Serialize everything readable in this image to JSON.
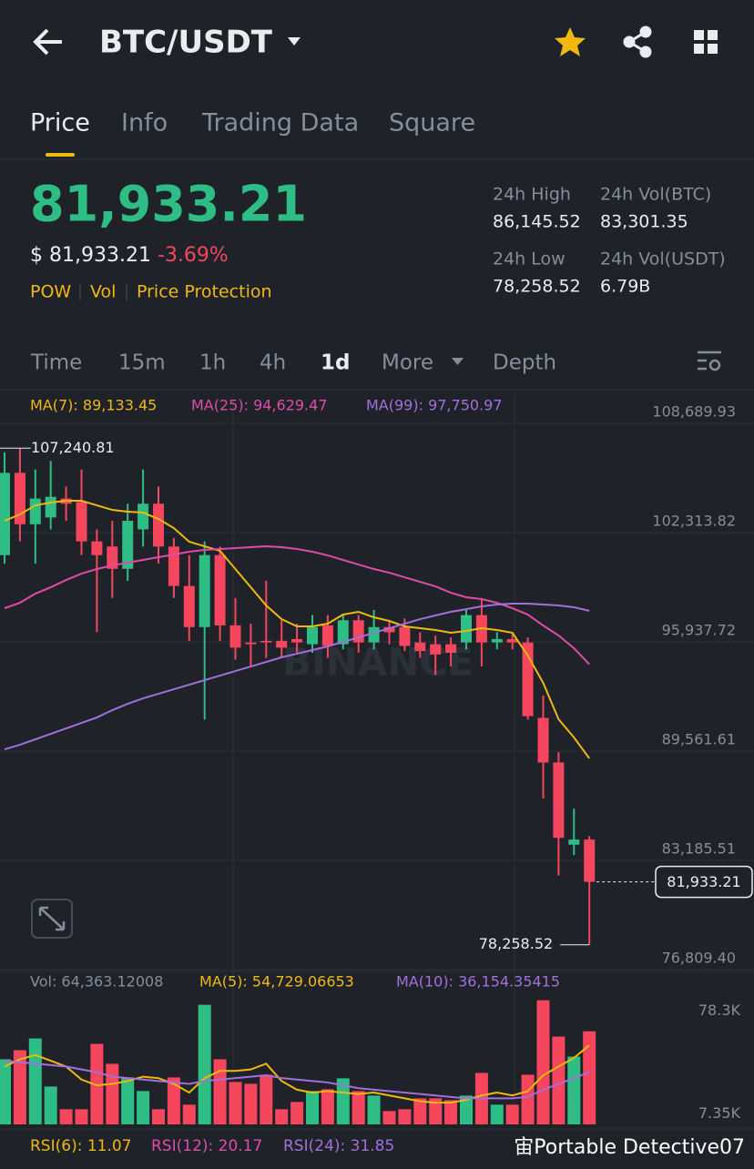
{
  "header": {
    "pair": "BTC/USDT"
  },
  "tabs": [
    "Price",
    "Info",
    "Trading Data",
    "Square"
  ],
  "ticker": {
    "price": "81,933.21",
    "usd_price": "$ 81,933.21",
    "change": "-3.69%",
    "tags": [
      "POW",
      "Vol",
      "Price Protection"
    ],
    "stats": [
      {
        "label": "24h High",
        "value": "86,145.52"
      },
      {
        "label": "24h Vol(BTC)",
        "value": "83,301.35"
      },
      {
        "label": "24h Low",
        "value": "78,258.52"
      },
      {
        "label": "24h Vol(USDT)",
        "value": "6.79B"
      }
    ]
  },
  "intervals": [
    "Time",
    "15m",
    "1h",
    "4h",
    "1d",
    "More",
    "Depth"
  ],
  "watermark": "BINANCE",
  "chart_data": [
    {
      "type": "candlestick",
      "up_color": "#2ebd85",
      "down_color": "#f6465d",
      "open": [
        101000,
        105800,
        102800,
        103200,
        104300,
        104100,
        101800,
        101500,
        100200,
        102500,
        104000,
        101500,
        99200,
        96800,
        101000,
        96900,
        95900,
        96000,
        96000,
        96100,
        95800,
        96900,
        95800,
        97200,
        95900,
        96800,
        96800,
        95900,
        95800,
        95800,
        95900,
        97500,
        95900,
        96100,
        95900,
        91500,
        88900,
        84100,
        84400
      ],
      "high": [
        107000,
        107240.81,
        106000,
        106500,
        105000,
        106000,
        102500,
        103000,
        104000,
        106000,
        105000,
        102000,
        101000,
        101800,
        101500,
        98500,
        97000,
        99500,
        97200,
        97000,
        97500,
        97500,
        97500,
        97500,
        97800,
        97200,
        97300,
        96500,
        96300,
        96200,
        97800,
        98500,
        96500,
        96400,
        96200,
        92800,
        89500,
        86200,
        84600
      ],
      "low": [
        100500,
        101800,
        100500,
        102500,
        103000,
        101000,
        96500,
        98500,
        99500,
        101500,
        100500,
        98500,
        96000,
        91400,
        96000,
        94900,
        94500,
        95000,
        95000,
        95200,
        95300,
        95000,
        95500,
        95300,
        95500,
        95800,
        95400,
        95000,
        94000,
        94500,
        95500,
        94500,
        95500,
        95500,
        91400,
        86800,
        82300,
        83500,
        78258.52
      ],
      "close": [
        105800,
        102800,
        104300,
        104400,
        104000,
        101800,
        101000,
        100200,
        103000,
        104000,
        101500,
        99200,
        96800,
        101000,
        96900,
        95600,
        95800,
        95900,
        95600,
        95900,
        96800,
        95700,
        97200,
        95900,
        96800,
        96500,
        95700,
        95400,
        95200,
        95300,
        97500,
        95900,
        96100,
        95900,
        91600,
        88900,
        84500,
        84400,
        81933.21
      ],
      "series": [
        {
          "label": "MA(7): 89,133.45",
          "color": "#f0b90b",
          "values": [
            103003,
            103375,
            103906,
            104066,
            104172,
            104172,
            103906,
            103640,
            103534,
            103481,
            103109,
            102578,
            101781,
            101515,
            101249,
            100187,
            99124,
            98062,
            97265,
            96840,
            96840,
            97000,
            97531,
            97690,
            97371,
            97159,
            96840,
            96734,
            96627,
            96468,
            96574,
            96734,
            96627,
            96468,
            95140,
            93546,
            91420,
            90358,
            89133.45
          ]
        },
        {
          "label": "MA(25): 94,629.47",
          "color": "#e04bab",
          "values": [
            97902,
            98221,
            98752,
            99124,
            99549,
            99921,
            100187,
            100399,
            100558,
            100718,
            100877,
            101036,
            101196,
            101302,
            101355,
            101408,
            101462,
            101515,
            101462,
            101355,
            101196,
            100983,
            100718,
            100452,
            100187,
            99974,
            99709,
            99443,
            99177,
            98805,
            98539,
            98433,
            98221,
            97902,
            97531,
            96893,
            96309,
            95565,
            94629.47
          ]
        },
        {
          "label": "MA(99): 97,750.97",
          "color": "#a26fdc",
          "values": [
            89666,
            89932,
            90251,
            90570,
            90888,
            91207,
            91526,
            91951,
            92323,
            92642,
            92907,
            93173,
            93439,
            93704,
            93970,
            94236,
            94501,
            94767,
            95033,
            95245,
            95458,
            95670,
            95936,
            96201,
            96467,
            96733,
            96998,
            97264,
            97477,
            97689,
            97848,
            98008,
            98114,
            98167,
            98167,
            98114,
            98061,
            97955,
            97750.97
          ]
        }
      ],
      "ylim": [
        76809.4,
        108689.93
      ],
      "yticks": [
        {
          "value": 108689.93,
          "label": "108,689.93"
        },
        {
          "value": 102313.82,
          "label": "102,313.82"
        },
        {
          "value": 95937.72,
          "label": "95,937.72"
        },
        {
          "value": 89561.61,
          "label": "89,561.61"
        },
        {
          "value": 83185.51,
          "label": "83,185.51"
        },
        {
          "value": 76809.4,
          "label": "76,809.40"
        }
      ],
      "grid": true,
      "high_label": "107,240.81",
      "low_label": "78,258.52",
      "last_label": "81,933.21"
    },
    {
      "type": "volume",
      "label": "Vol: 64,363.12008",
      "label_color": "#848e9c",
      "values": [
        45030,
        51300,
        59450,
        26190,
        10490,
        10490,
        55700,
        41900,
        32470,
        23050,
        10490,
        32470,
        13630,
        82710,
        45030,
        29330,
        28070,
        34350,
        10490,
        15510,
        23050,
        24310,
        31840,
        23050,
        19910,
        9230,
        10490,
        18030,
        18030,
        16770,
        19910,
        35610,
        13630,
        13630,
        34350,
        85850,
        60730,
        46910,
        64363.12008
      ],
      "series": [
        {
          "label": "MA(5): 54,729.06653",
          "color": "#f0b90b",
          "values": [
            40000,
            45000,
            48000,
            44000,
            40000,
            31000,
            27000,
            28000,
            30000,
            33000,
            32000,
            28000,
            22000,
            32000,
            37000,
            37000,
            38000,
            42000,
            30000,
            24000,
            22000,
            23000,
            22000,
            21000,
            22000,
            20000,
            18000,
            16000,
            15000,
            15000,
            17000,
            20000,
            22000,
            20000,
            23000,
            34000,
            40000,
            46000,
            54729.06653
          ]
        },
        {
          "label": "MA(10): 36,154.35415",
          "color": "#a26fdc",
          "values": [
            44000,
            43000,
            42000,
            41000,
            40000,
            38000,
            36000,
            33000,
            32000,
            31000,
            30000,
            29000,
            28000,
            30000,
            31000,
            32000,
            33000,
            34000,
            32000,
            31000,
            30000,
            29000,
            27000,
            25000,
            24000,
            23000,
            22000,
            21000,
            20000,
            19000,
            18000,
            18000,
            18000,
            18000,
            19000,
            24000,
            28000,
            32000,
            36154.35415
          ]
        }
      ],
      "ylim": [
        0,
        85000
      ],
      "yticks": [
        {
          "value": 78300,
          "label": "78.3K"
        },
        {
          "value": 7350,
          "label": "7.35K"
        }
      ]
    }
  ],
  "indicators": {
    "rsi": [
      {
        "label": "RSI(6): 11.07",
        "color": "#f0b90b"
      },
      {
        "label": "RSI(12): 20.17",
        "color": "#e04bab"
      },
      {
        "label": "RSI(24): 31.85",
        "color": "#a26fdc"
      }
    ]
  },
  "user_watermark": "宙Portable Detective07"
}
